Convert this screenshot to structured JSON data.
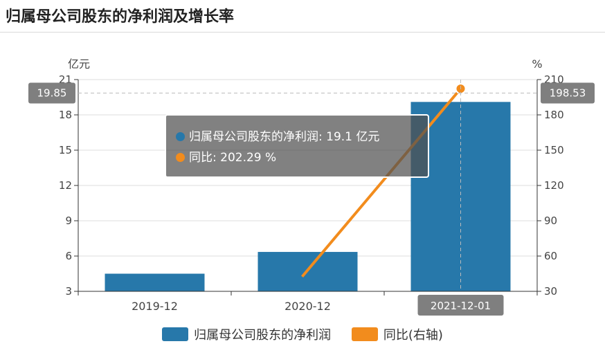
{
  "title": "归属母公司股东的净利润及增长率",
  "colors": {
    "bar": "#2778aa",
    "line": "#f28c1d",
    "axis": "#333333",
    "grid": "#dddddd",
    "pointer": "#7f7f7f"
  },
  "chart_data": {
    "type": "bar",
    "categories": [
      "2019-12",
      "2020-12",
      "2021-12-01"
    ],
    "series": [
      {
        "name": "归属母公司股东的净利润",
        "type": "bar",
        "axis": "left",
        "values": [
          4.5,
          6.35,
          19.1
        ]
      },
      {
        "name": "同比(右轴)",
        "type": "line",
        "axis": "right",
        "values": [
          null,
          42.5,
          202.29
        ]
      }
    ],
    "y_left": {
      "unit": "亿元",
      "min": 3,
      "max": 21,
      "ticks": [
        3,
        6,
        9,
        12,
        15,
        18,
        21
      ]
    },
    "y_right": {
      "unit": "%",
      "min": 30,
      "max": 210,
      "ticks": [
        30,
        60,
        90,
        120,
        150,
        180,
        210
      ]
    },
    "grid": true,
    "legend_position": "bottom",
    "axis_pointer": {
      "category_label": "2021-12-01",
      "left_value": "19.85",
      "right_value": "198.53"
    },
    "tooltip": {
      "bar_label": "归属母公司股东的净利润",
      "bar_value": "19.1",
      "bar_unit": "亿元",
      "line_label": "同比",
      "line_value": "202.29",
      "line_unit": "%"
    }
  }
}
